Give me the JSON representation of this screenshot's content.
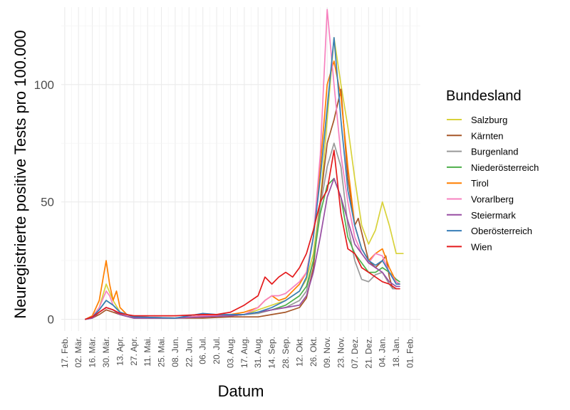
{
  "chart_data": {
    "type": "line",
    "xlabel": "Datum",
    "ylabel": "Neuregistrierte positive Tests pro 100.000",
    "ylim": [
      -5,
      133
    ],
    "y_ticks": [
      0,
      50,
      100
    ],
    "y_tick_labels": [
      "0",
      "50",
      "100"
    ],
    "x_ticks": [
      {
        "week": 0,
        "label": "17. Feb."
      },
      {
        "week": 2,
        "label": "02. Mär."
      },
      {
        "week": 4,
        "label": "16. Mär."
      },
      {
        "week": 6,
        "label": "30. Mär."
      },
      {
        "week": 8,
        "label": "13. Apr."
      },
      {
        "week": 10,
        "label": "27. Apr."
      },
      {
        "week": 12,
        "label": "11. Mai."
      },
      {
        "week": 14,
        "label": "25. Mai."
      },
      {
        "week": 16,
        "label": "08. Jun."
      },
      {
        "week": 18,
        "label": "22. Jun."
      },
      {
        "week": 20,
        "label": "06. Jul."
      },
      {
        "week": 22,
        "label": "20. Jul."
      },
      {
        "week": 24,
        "label": "03. Aug."
      },
      {
        "week": 26,
        "label": "17. Aug."
      },
      {
        "week": 28,
        "label": "31. Aug."
      },
      {
        "week": 30,
        "label": "14. Sep."
      },
      {
        "week": 32,
        "label": "28. Sep."
      },
      {
        "week": 34,
        "label": "12. Okt."
      },
      {
        "week": 36,
        "label": "26. Okt."
      },
      {
        "week": 38,
        "label": "09. Nov."
      },
      {
        "week": 40,
        "label": "23. Nov."
      },
      {
        "week": 42,
        "label": "07. Dez."
      },
      {
        "week": 44,
        "label": "21. Dez."
      },
      {
        "week": 46,
        "label": "04. Jan."
      },
      {
        "week": 48,
        "label": "18. Jan."
      },
      {
        "week": 50,
        "label": "01. Feb."
      }
    ],
    "xlim_weeks": [
      -0.5,
      51.5
    ],
    "grid": true,
    "legend": {
      "title": "Bundesland",
      "position": "right"
    },
    "series": [
      {
        "name": "Salzburg",
        "color": "#d8d23a",
        "points": [
          [
            3,
            0
          ],
          [
            4,
            1
          ],
          [
            5,
            5
          ],
          [
            6,
            15
          ],
          [
            7,
            8
          ],
          [
            8,
            3
          ],
          [
            9,
            2
          ],
          [
            10,
            1
          ],
          [
            12,
            0.5
          ],
          [
            16,
            0.5
          ],
          [
            20,
            1.5
          ],
          [
            24,
            1.5
          ],
          [
            26,
            2
          ],
          [
            28,
            4
          ],
          [
            30,
            6
          ],
          [
            32,
            8
          ],
          [
            34,
            12
          ],
          [
            35,
            17
          ],
          [
            36,
            28
          ],
          [
            37,
            50
          ],
          [
            38,
            85
          ],
          [
            39,
            120
          ],
          [
            40,
            100
          ],
          [
            41,
            82
          ],
          [
            42,
            60
          ],
          [
            43,
            40
          ],
          [
            44,
            32
          ],
          [
            45,
            38
          ],
          [
            46,
            50
          ],
          [
            47,
            40
          ],
          [
            48,
            28
          ],
          [
            48.5,
            28
          ],
          [
            49,
            28
          ]
        ]
      },
      {
        "name": "Kärnten",
        "color": "#a65628",
        "points": [
          [
            3,
            0
          ],
          [
            4,
            0.5
          ],
          [
            5,
            2
          ],
          [
            6,
            4
          ],
          [
            7,
            3
          ],
          [
            8,
            2
          ],
          [
            10,
            0.5
          ],
          [
            16,
            0.5
          ],
          [
            20,
            0.5
          ],
          [
            24,
            1
          ],
          [
            26,
            1
          ],
          [
            28,
            1
          ],
          [
            30,
            2
          ],
          [
            32,
            3
          ],
          [
            34,
            5
          ],
          [
            35,
            9
          ],
          [
            36,
            22
          ],
          [
            37,
            50
          ],
          [
            38,
            75
          ],
          [
            39,
            85
          ],
          [
            40,
            98
          ],
          [
            41,
            60
          ],
          [
            42,
            40
          ],
          [
            42.5,
            43
          ],
          [
            43,
            37
          ],
          [
            44,
            25
          ],
          [
            45,
            22
          ],
          [
            46,
            25
          ],
          [
            46.5,
            27
          ],
          [
            47,
            18
          ],
          [
            47.5,
            13
          ],
          [
            48,
            13
          ]
        ]
      },
      {
        "name": "Burgenland",
        "color": "#999999",
        "points": [
          [
            3,
            0
          ],
          [
            4,
            0.5
          ],
          [
            5,
            3
          ],
          [
            6,
            5
          ],
          [
            7,
            4
          ],
          [
            8,
            2
          ],
          [
            10,
            0.5
          ],
          [
            16,
            0.5
          ],
          [
            20,
            1
          ],
          [
            24,
            1.5
          ],
          [
            26,
            2
          ],
          [
            28,
            2.5
          ],
          [
            30,
            4
          ],
          [
            32,
            5
          ],
          [
            34,
            8
          ],
          [
            35,
            12
          ],
          [
            36,
            25
          ],
          [
            37,
            48
          ],
          [
            38,
            65
          ],
          [
            39,
            75
          ],
          [
            40,
            65
          ],
          [
            41,
            40
          ],
          [
            42,
            25
          ],
          [
            43,
            17
          ],
          [
            44,
            16
          ],
          [
            45,
            19
          ],
          [
            46,
            20
          ],
          [
            47,
            15
          ],
          [
            47.5,
            13
          ],
          [
            48,
            13
          ]
        ]
      },
      {
        "name": "Niederösterreich",
        "color": "#4daf4a",
        "points": [
          [
            3,
            0
          ],
          [
            4,
            1
          ],
          [
            5,
            4
          ],
          [
            6,
            8
          ],
          [
            7,
            6
          ],
          [
            8,
            3
          ],
          [
            10,
            1
          ],
          [
            16,
            0.5
          ],
          [
            20,
            1.5
          ],
          [
            24,
            1.5
          ],
          [
            26,
            2
          ],
          [
            28,
            3
          ],
          [
            30,
            4
          ],
          [
            32,
            6
          ],
          [
            34,
            10
          ],
          [
            35,
            14
          ],
          [
            36,
            25
          ],
          [
            37,
            45
          ],
          [
            38,
            57
          ],
          [
            39,
            60
          ],
          [
            40,
            52
          ],
          [
            41,
            35
          ],
          [
            42,
            28
          ],
          [
            43,
            24
          ],
          [
            44,
            20
          ],
          [
            45,
            20
          ],
          [
            46,
            22
          ],
          [
            47,
            20
          ],
          [
            48,
            17
          ],
          [
            48.5,
            16
          ]
        ]
      },
      {
        "name": "Tirol",
        "color": "#ff7f00",
        "points": [
          [
            3,
            0
          ],
          [
            4,
            1.5
          ],
          [
            5,
            8
          ],
          [
            6,
            25
          ],
          [
            6.5,
            15
          ],
          [
            7,
            8
          ],
          [
            7.5,
            12
          ],
          [
            8,
            5
          ],
          [
            9,
            2
          ],
          [
            10,
            1
          ],
          [
            16,
            0.5
          ],
          [
            20,
            1.5
          ],
          [
            24,
            2
          ],
          [
            26,
            3
          ],
          [
            28,
            5
          ],
          [
            29,
            8
          ],
          [
            30,
            10
          ],
          [
            31,
            8
          ],
          [
            32,
            9
          ],
          [
            34,
            15
          ],
          [
            35,
            20
          ],
          [
            36,
            35
          ],
          [
            37,
            65
          ],
          [
            38,
            100
          ],
          [
            39,
            110
          ],
          [
            40,
            95
          ],
          [
            41,
            65
          ],
          [
            42,
            40
          ],
          [
            43,
            30
          ],
          [
            44,
            25
          ],
          [
            45,
            28
          ],
          [
            46,
            30
          ],
          [
            47,
            22
          ],
          [
            48,
            16
          ],
          [
            48.5,
            15
          ]
        ]
      },
      {
        "name": "Vorarlberg",
        "color": "#f781bf",
        "points": [
          [
            3,
            0
          ],
          [
            4,
            1
          ],
          [
            5,
            5
          ],
          [
            6,
            12
          ],
          [
            6.5,
            10
          ],
          [
            7,
            6
          ],
          [
            8,
            3
          ],
          [
            10,
            1
          ],
          [
            16,
            0.5
          ],
          [
            20,
            1.5
          ],
          [
            24,
            1.5
          ],
          [
            26,
            2
          ],
          [
            28,
            5
          ],
          [
            29,
            8
          ],
          [
            30,
            10
          ],
          [
            31,
            10
          ],
          [
            32,
            11
          ],
          [
            34,
            16
          ],
          [
            35,
            20
          ],
          [
            36,
            35
          ],
          [
            37,
            70
          ],
          [
            38,
            132
          ],
          [
            39,
            100
          ],
          [
            40,
            70
          ],
          [
            41,
            50
          ],
          [
            42,
            35
          ],
          [
            43,
            28
          ],
          [
            44,
            24
          ],
          [
            45,
            28
          ],
          [
            46,
            27
          ],
          [
            47,
            20
          ],
          [
            48,
            16
          ],
          [
            48.5,
            15
          ]
        ]
      },
      {
        "name": "Steiermark",
        "color": "#984ea3",
        "points": [
          [
            3,
            0
          ],
          [
            4,
            0.5
          ],
          [
            5,
            3
          ],
          [
            6,
            5
          ],
          [
            7,
            4
          ],
          [
            8,
            2
          ],
          [
            10,
            0.5
          ],
          [
            16,
            0.5
          ],
          [
            20,
            1
          ],
          [
            24,
            1.5
          ],
          [
            26,
            2
          ],
          [
            28,
            3
          ],
          [
            30,
            4
          ],
          [
            32,
            5
          ],
          [
            34,
            6
          ],
          [
            35,
            10
          ],
          [
            36,
            20
          ],
          [
            37,
            35
          ],
          [
            38,
            52
          ],
          [
            39,
            60
          ],
          [
            40,
            52
          ],
          [
            41,
            42
          ],
          [
            42,
            32
          ],
          [
            43,
            28
          ],
          [
            44,
            24
          ],
          [
            45,
            22
          ],
          [
            46,
            20
          ],
          [
            47,
            16
          ],
          [
            48,
            14
          ],
          [
            48.5,
            14
          ]
        ]
      },
      {
        "name": "Oberösterreich",
        "color": "#377eb8",
        "points": [
          [
            3,
            0
          ],
          [
            4,
            1
          ],
          [
            5,
            4
          ],
          [
            6,
            8
          ],
          [
            7,
            6
          ],
          [
            8,
            3
          ],
          [
            10,
            1
          ],
          [
            16,
            0.5
          ],
          [
            20,
            2.5
          ],
          [
            22,
            2
          ],
          [
            24,
            2
          ],
          [
            26,
            2
          ],
          [
            28,
            3
          ],
          [
            30,
            5
          ],
          [
            32,
            8
          ],
          [
            34,
            12
          ],
          [
            35,
            18
          ],
          [
            36,
            35
          ],
          [
            37,
            60
          ],
          [
            38,
            90
          ],
          [
            39,
            120
          ],
          [
            40,
            85
          ],
          [
            41,
            55
          ],
          [
            42,
            40
          ],
          [
            43,
            30
          ],
          [
            44,
            25
          ],
          [
            45,
            23
          ],
          [
            46,
            25
          ],
          [
            47,
            20
          ],
          [
            48,
            15
          ],
          [
            48.5,
            15
          ]
        ]
      },
      {
        "name": "Wien",
        "color": "#e41a1c",
        "points": [
          [
            3,
            0
          ],
          [
            4,
            1
          ],
          [
            5,
            3
          ],
          [
            6,
            5
          ],
          [
            7,
            4
          ],
          [
            8,
            2.5
          ],
          [
            10,
            1.5
          ],
          [
            12,
            1.5
          ],
          [
            16,
            1.5
          ],
          [
            20,
            2
          ],
          [
            22,
            2
          ],
          [
            24,
            3
          ],
          [
            26,
            6
          ],
          [
            28,
            10
          ],
          [
            29,
            18
          ],
          [
            30,
            15
          ],
          [
            31,
            18
          ],
          [
            32,
            20
          ],
          [
            33,
            18
          ],
          [
            34,
            22
          ],
          [
            35,
            28
          ],
          [
            36,
            38
          ],
          [
            37,
            50
          ],
          [
            38,
            55
          ],
          [
            39,
            72
          ],
          [
            40,
            45
          ],
          [
            41,
            30
          ],
          [
            42,
            28
          ],
          [
            43,
            22
          ],
          [
            44,
            20
          ],
          [
            45,
            18
          ],
          [
            46,
            16
          ],
          [
            47,
            15
          ],
          [
            48,
            13
          ],
          [
            48.5,
            13
          ]
        ]
      }
    ]
  }
}
